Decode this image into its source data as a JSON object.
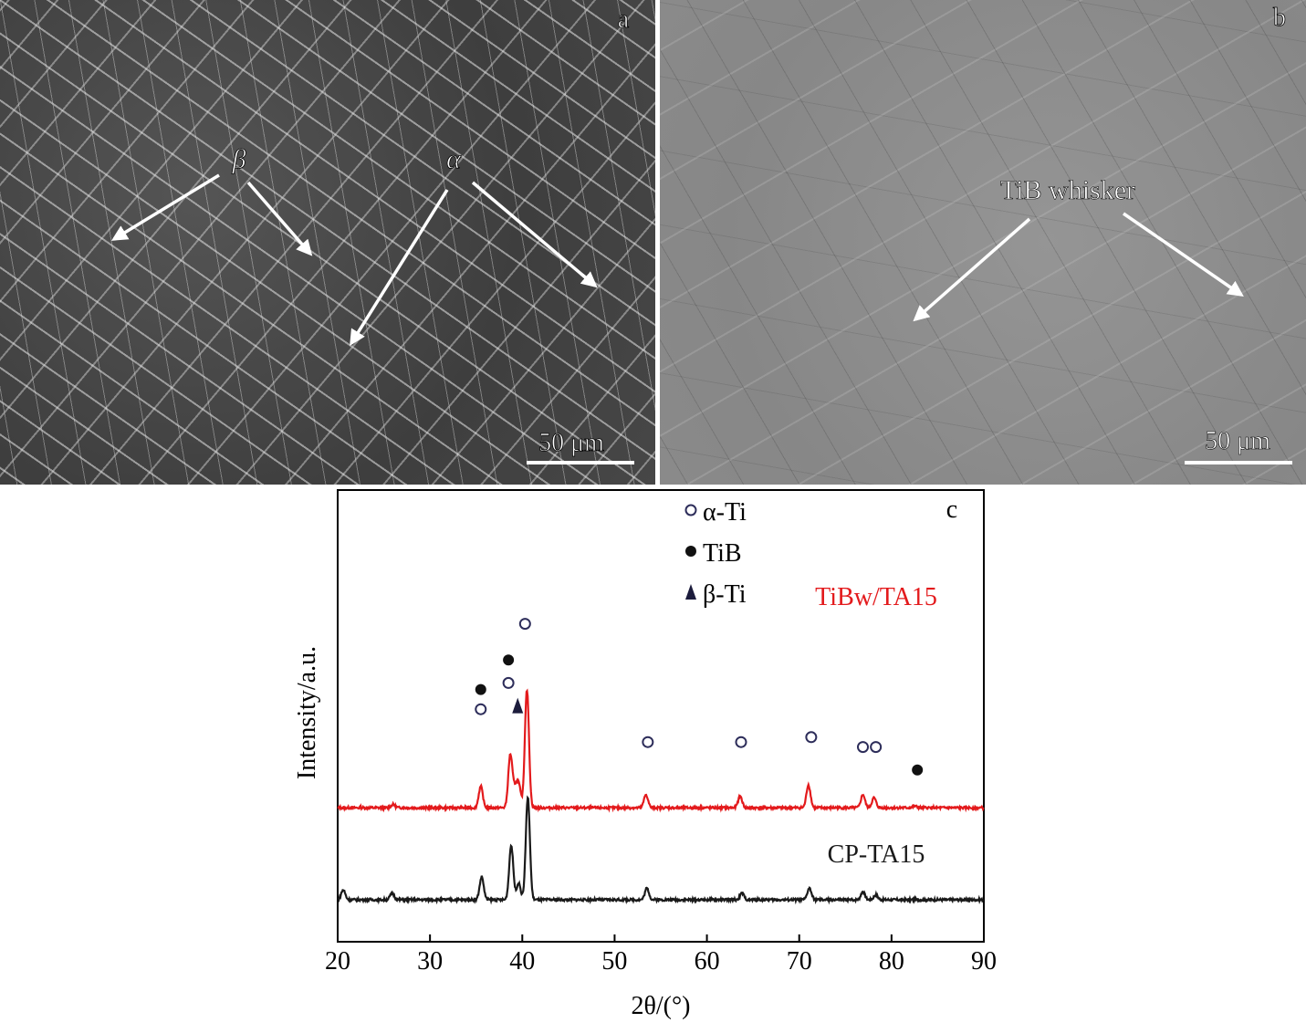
{
  "panel_a": {
    "letter": "a",
    "phase_beta": "β",
    "phase_alpha": "α",
    "scale_bar": "50 μm"
  },
  "panel_b": {
    "letter": "b",
    "whisker_label": "TiB whisker",
    "scale_bar": "50 μm"
  },
  "chart_data": {
    "type": "line",
    "panel_letter": "c",
    "xlabel": "2θ/(°)",
    "ylabel": "Intensity/a.u.",
    "xlim": [
      20,
      90
    ],
    "x_ticks": [
      20,
      30,
      40,
      50,
      60,
      70,
      80,
      90
    ],
    "legend": [
      {
        "marker": "open-circle",
        "label": "α-Ti"
      },
      {
        "marker": "filled-circle",
        "label": "TiB"
      },
      {
        "marker": "filled-triangle",
        "label": "β-Ti"
      }
    ],
    "series": [
      {
        "name": "TiBw/TA15",
        "color": "#e31a1c",
        "baseline": 0.56,
        "peaks": [
          {
            "x": 35.5,
            "h": 0.13
          },
          {
            "x": 38.7,
            "h": 0.32
          },
          {
            "x": 39.2,
            "h": 0.1
          },
          {
            "x": 39.6,
            "h": 0.14
          },
          {
            "x": 40.5,
            "h": 0.72
          },
          {
            "x": 53.4,
            "h": 0.08
          },
          {
            "x": 63.6,
            "h": 0.07
          },
          {
            "x": 71.0,
            "h": 0.14
          },
          {
            "x": 76.9,
            "h": 0.08
          },
          {
            "x": 78.1,
            "h": 0.06
          },
          {
            "x": 26.0,
            "h": 0.02
          },
          {
            "x": 82.5,
            "h": 0.01
          }
        ],
        "markers": [
          {
            "x": 35.5,
            "type": "filled-circle",
            "level": 0.72
          },
          {
            "x": 35.5,
            "type": "open-circle",
            "level": 0.6
          },
          {
            "x": 38.5,
            "type": "filled-circle",
            "level": 0.9
          },
          {
            "x": 38.5,
            "type": "open-circle",
            "level": 0.76
          },
          {
            "x": 39.5,
            "type": "filled-triangle",
            "level": 0.62
          },
          {
            "x": 40.3,
            "type": "open-circle",
            "level": 1.12
          },
          {
            "x": 53.6,
            "type": "open-circle",
            "level": 0.4
          },
          {
            "x": 63.7,
            "type": "open-circle",
            "level": 0.4
          },
          {
            "x": 71.3,
            "type": "open-circle",
            "level": 0.43
          },
          {
            "x": 76.9,
            "type": "open-circle",
            "level": 0.37
          },
          {
            "x": 78.3,
            "type": "open-circle",
            "level": 0.37
          },
          {
            "x": 82.8,
            "type": "filled-circle",
            "level": 0.23
          }
        ]
      },
      {
        "name": "CP-TA15",
        "color": "#1a1a1a",
        "baseline": 0.0,
        "peaks": [
          {
            "x": 20.6,
            "h": 0.06
          },
          {
            "x": 25.9,
            "h": 0.04
          },
          {
            "x": 35.6,
            "h": 0.14
          },
          {
            "x": 38.8,
            "h": 0.33
          },
          {
            "x": 39.6,
            "h": 0.1
          },
          {
            "x": 40.6,
            "h": 0.62
          },
          {
            "x": 53.5,
            "h": 0.07
          },
          {
            "x": 63.8,
            "h": 0.04
          },
          {
            "x": 71.1,
            "h": 0.07
          },
          {
            "x": 76.9,
            "h": 0.05
          },
          {
            "x": 78.3,
            "h": 0.03
          }
        ],
        "markers": []
      }
    ]
  }
}
